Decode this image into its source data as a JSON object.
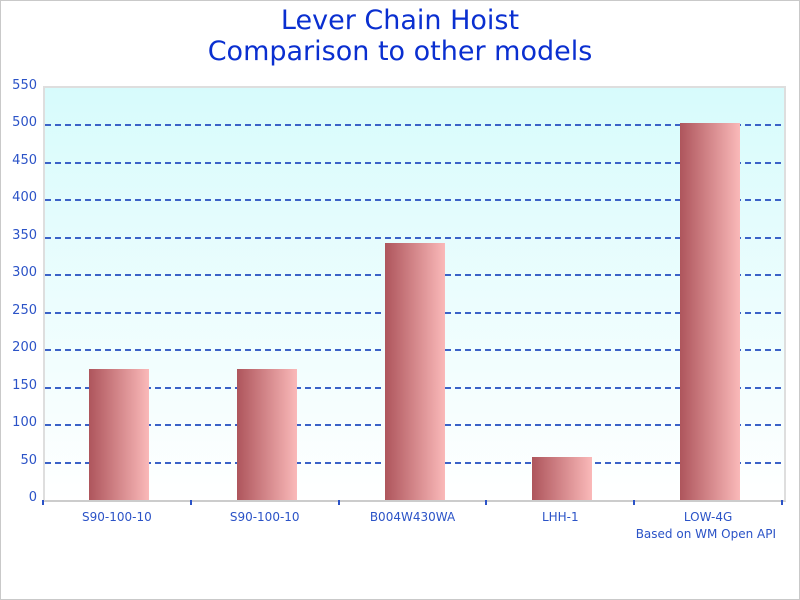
{
  "title": {
    "line1": "Lever Chain Hoist",
    "line2": "Comparison to other models"
  },
  "footnote": "Based on WM Open API",
  "chart_data": {
    "type": "bar",
    "title": "Lever Chain Hoist Comparison to other models",
    "categories": [
      "S90-100-10",
      "S90-100-10",
      "B004W430WA",
      "LHH-1",
      "LOW-4G"
    ],
    "values": [
      175,
      175,
      343,
      58,
      503
    ],
    "xlabel": "",
    "ylabel": "",
    "ylim": [
      0,
      550
    ],
    "ytick_step": 50,
    "grid": "horizontal-dashed",
    "legend": "none",
    "annotation": "Based on WM Open API",
    "colors": {
      "title_text": "#0a2fd0",
      "axis_text": "#2b53c7",
      "gridline": "#3b62c8",
      "bar_gradient_left": "#ae555c",
      "bar_gradient_right": "#fab9b9",
      "plot_bg_top": "#d7fbfc",
      "plot_bg_bottom": "#ffffff",
      "axis_line": "#cccccc"
    }
  }
}
